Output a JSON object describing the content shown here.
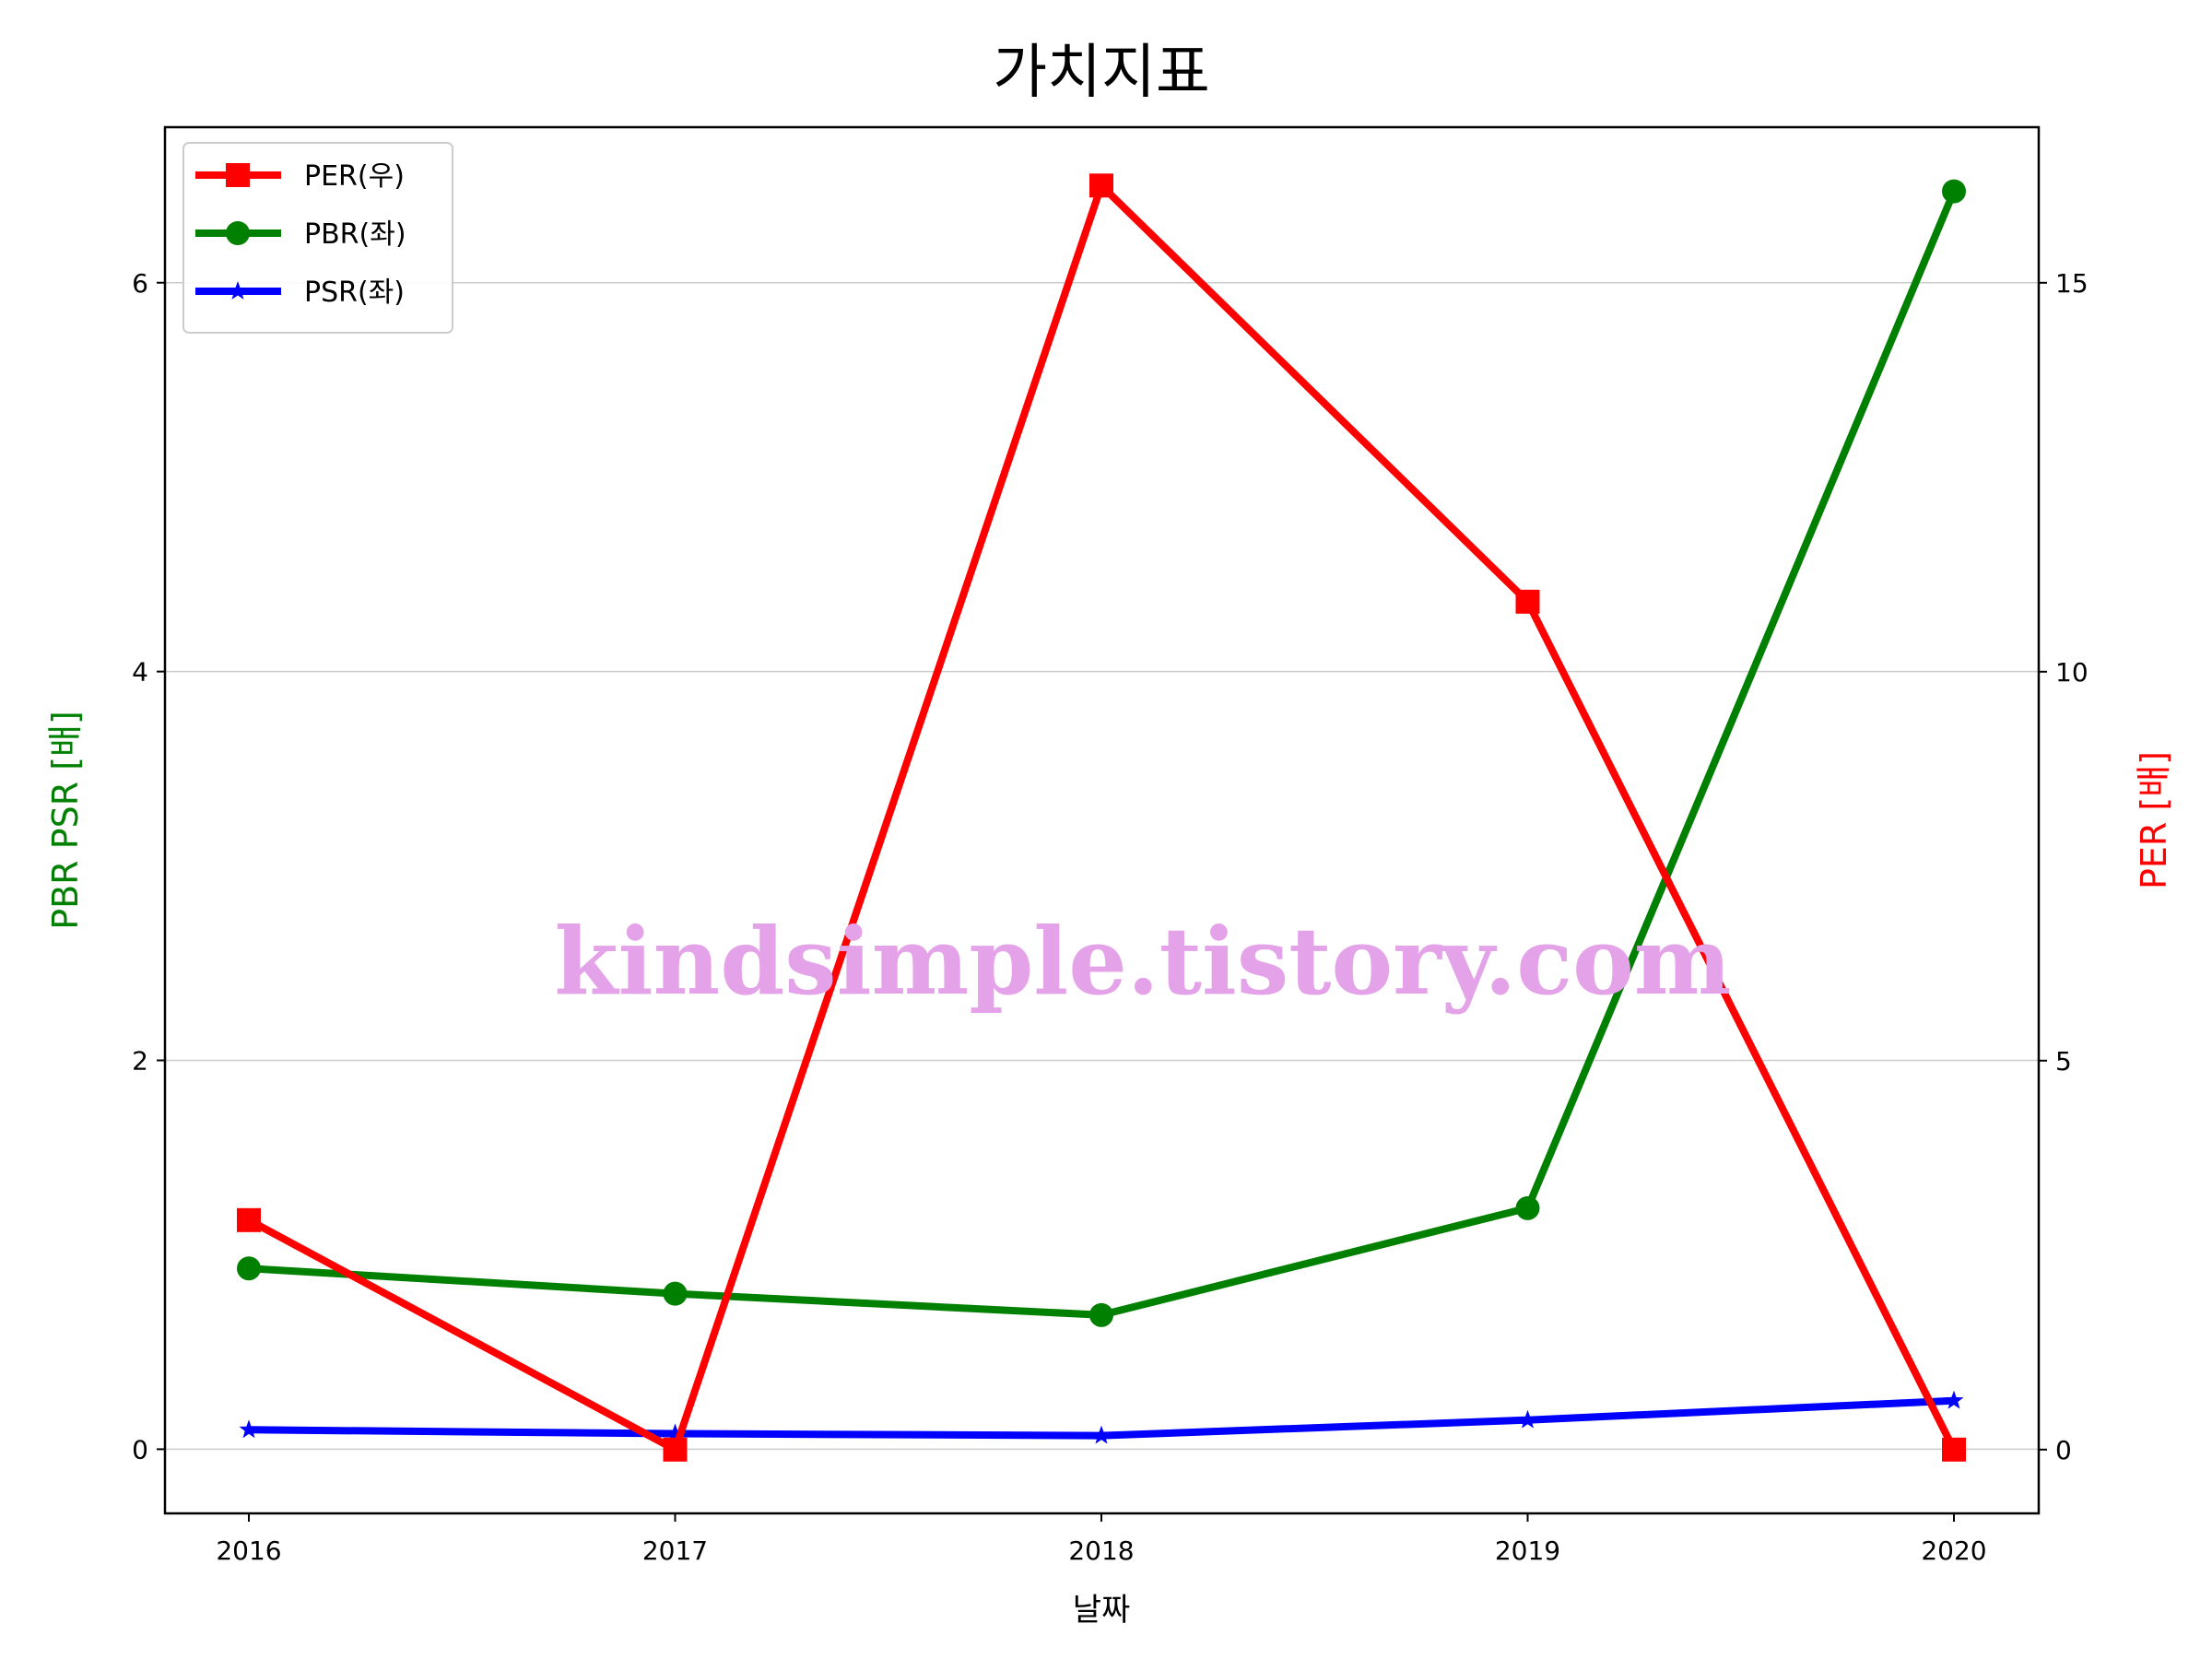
{
  "chart_data": {
    "type": "line",
    "title": "가치지표",
    "xlabel": "날짜",
    "ylabel_left": "PBR PSR [배]",
    "ylabel_right": "PER [배]",
    "categories": [
      "2016",
      "2017",
      "2018",
      "2019",
      "2020"
    ],
    "yticks_left": [
      "0",
      "2",
      "4",
      "6"
    ],
    "yticks_right": [
      "0",
      "5",
      "10",
      "15"
    ],
    "ylim_left": [
      -0.33,
      6.8
    ],
    "ylim_right": [
      -0.82,
      17.0
    ],
    "grid": "horizontal (left axis)",
    "legend_position": "top-left",
    "series": [
      {
        "name": "PER(우)",
        "axis": "right",
        "marker": "square",
        "color": "#ff0000",
        "values": [
          2.95,
          0.0,
          16.25,
          10.9,
          0.0
        ]
      },
      {
        "name": "PBR(좌)",
        "axis": "left",
        "marker": "circle",
        "color": "#008000",
        "values": [
          0.93,
          0.8,
          0.69,
          1.24,
          6.47
        ]
      },
      {
        "name": "PSR(좌)",
        "axis": "left",
        "marker": "star",
        "color": "#0000ff",
        "values": [
          0.1,
          0.08,
          0.07,
          0.15,
          0.25
        ]
      }
    ],
    "watermark": "kindsimple.tistory.com"
  }
}
